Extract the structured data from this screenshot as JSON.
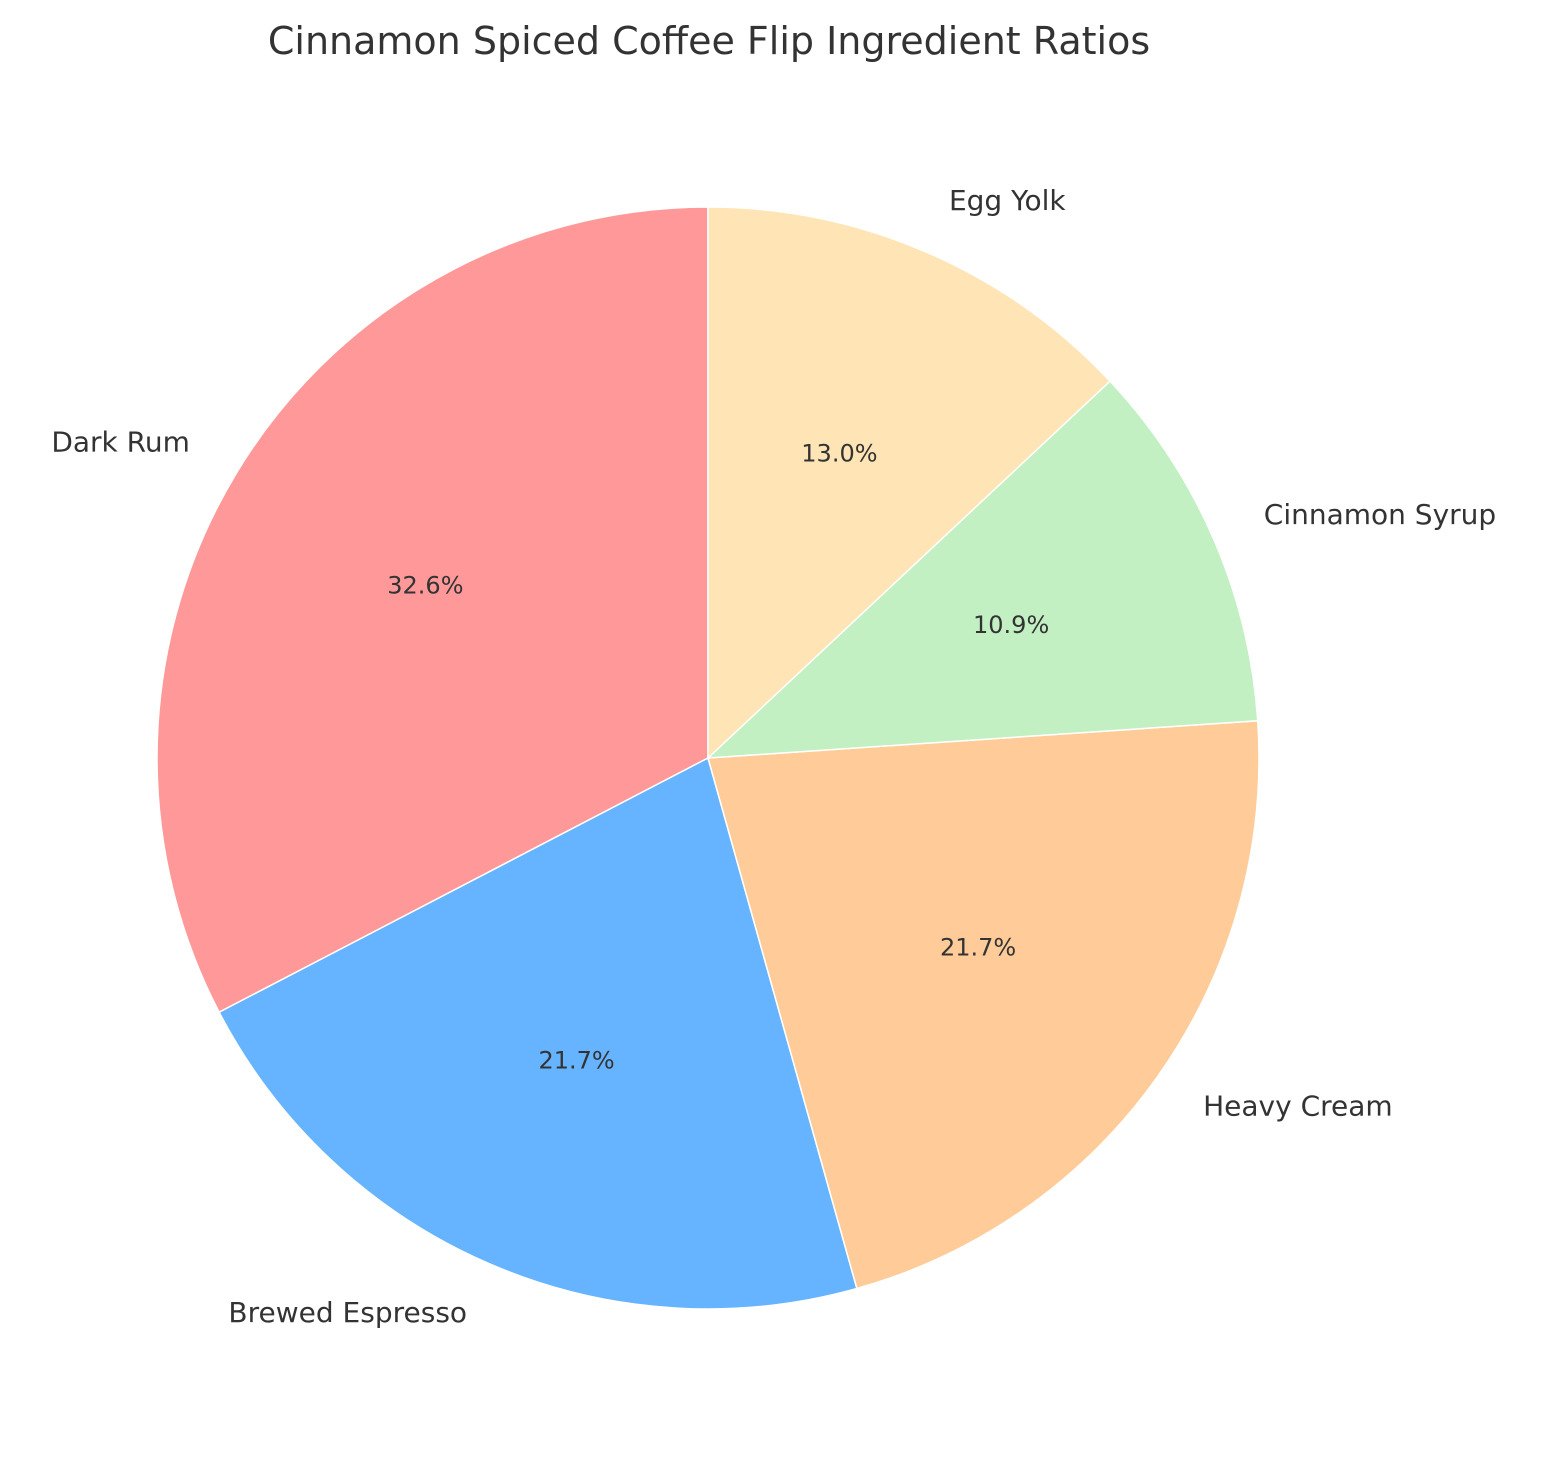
{
  "chart_data": {
    "type": "pie",
    "title": "Cinnamon Spiced Coffee Flip Ingredient Ratios",
    "start_angle_deg": 90,
    "direction": "counterclockwise",
    "slices": [
      {
        "label": "Dark Rum",
        "value": 32.6,
        "pct_label": "32.6%",
        "color": "#FF9999"
      },
      {
        "label": "Brewed Espresso",
        "value": 21.7,
        "pct_label": "21.7%",
        "color": "#66B3FF"
      },
      {
        "label": "Heavy Cream",
        "value": 21.7,
        "pct_label": "21.7%",
        "color": "#FFCC99"
      },
      {
        "label": "Cinnamon Syrup",
        "value": 10.9,
        "pct_label": "10.9%",
        "color": "#C2F0C2"
      },
      {
        "label": "Egg Yolk",
        "value": 13.0,
        "pct_label": "13.0%",
        "color": "#FFE4B5"
      }
    ]
  }
}
